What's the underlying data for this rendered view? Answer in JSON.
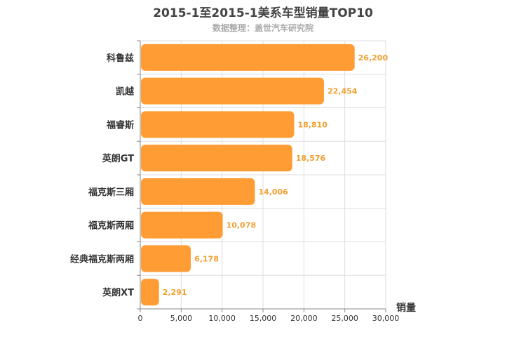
{
  "title": "2015-1至2015-1美系车型销量TOP10",
  "subtitle": "数据整理：盖世汽车研究院",
  "colors": {
    "bar": "#ff9c33",
    "value_label": "#f0a030",
    "grid": "#dddddd",
    "axis": "#888888"
  },
  "chart_data": {
    "type": "bar",
    "orientation": "horizontal",
    "title": "2015-1至2015-1美系车型销量TOP10",
    "subtitle": "数据整理：盖世汽车研究院",
    "categories": [
      "科鲁兹",
      "凯越",
      "福睿斯",
      "英朗GT",
      "福克斯三厢",
      "福克斯两厢",
      "经典福克斯两厢",
      "英朗XT"
    ],
    "values": [
      26200,
      22454,
      18810,
      18576,
      14006,
      10078,
      6178,
      2291
    ],
    "value_labels": [
      "26,200",
      "22,454",
      "18,810",
      "18,576",
      "14,006",
      "10,078",
      "6,178",
      "2,291"
    ],
    "xlabel": "销量",
    "ylabel": "",
    "xlim": [
      0,
      30000
    ],
    "ticks": [
      0,
      5000,
      10000,
      15000,
      20000,
      25000,
      30000
    ],
    "tick_labels": [
      "0",
      "5,000",
      "10,000",
      "15,000",
      "20,000",
      "25,000",
      "30,000"
    ],
    "grid": true,
    "legend": "none"
  }
}
